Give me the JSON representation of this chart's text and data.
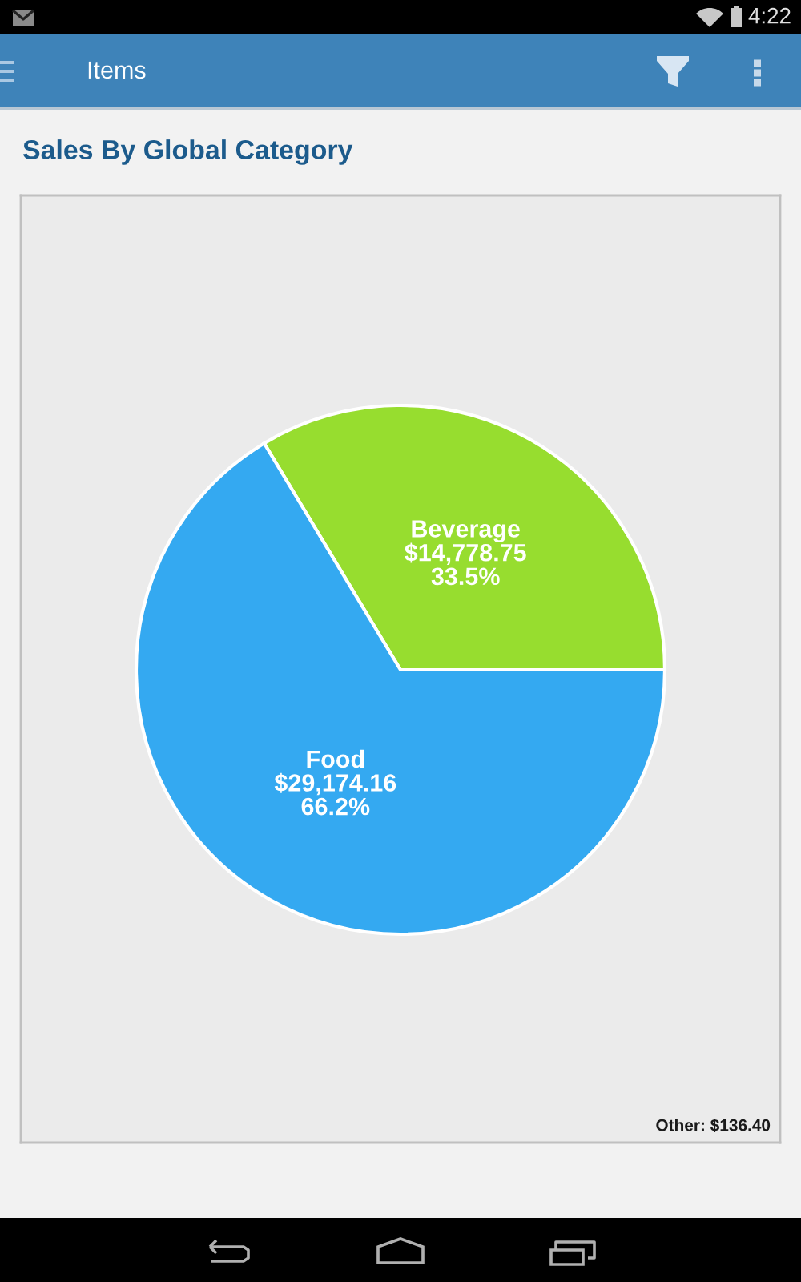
{
  "chart_data": {
    "type": "pie",
    "title": "Sales By Global Category",
    "categories": [
      "Beverage",
      "Food"
    ],
    "values": [
      14778.75,
      29174.16
    ],
    "colors": [
      "#97dd2f",
      "#34a9f1"
    ],
    "value_labels": [
      "$14,778.75\n33.5%",
      "$29,174.16\n66.2%"
    ],
    "annotations": [
      "Other: $136.40",
      "Items",
      "4:22"
    ]
  }
}
